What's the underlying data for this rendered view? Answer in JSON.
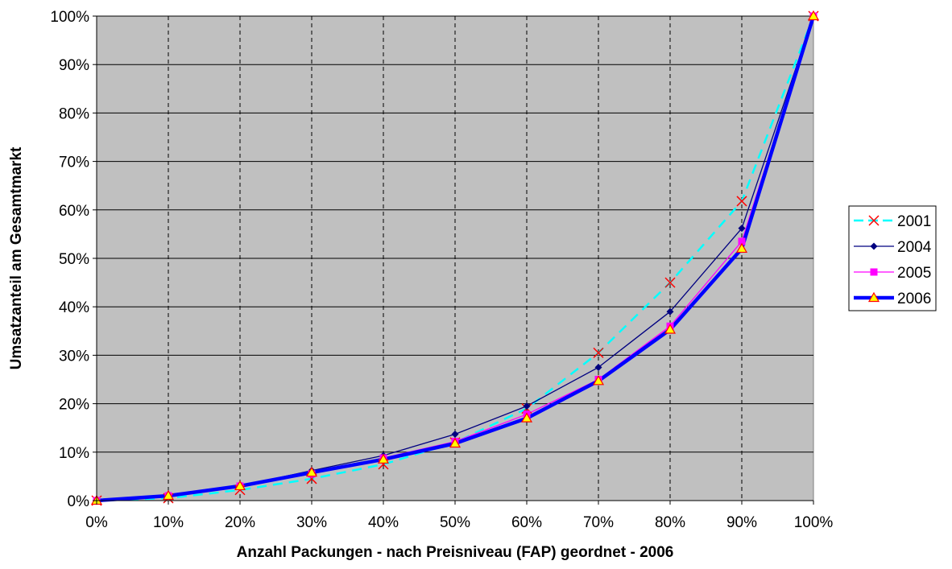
{
  "chart_data": {
    "type": "line",
    "title": "",
    "xlabel": "Anzahl Packungen - nach Preisniveau (FAP) geordnet - 2006",
    "ylabel": "Umsatzanteil am Gesamtmarkt",
    "x": [
      0,
      10,
      20,
      30,
      40,
      50,
      60,
      70,
      80,
      90,
      100
    ],
    "x_tick_labels": [
      "0%",
      "10%",
      "20%",
      "30%",
      "40%",
      "50%",
      "60%",
      "70%",
      "80%",
      "90%",
      "100%"
    ],
    "y_tick_labels": [
      "0%",
      "10%",
      "20%",
      "30%",
      "40%",
      "50%",
      "60%",
      "70%",
      "80%",
      "90%",
      "100%"
    ],
    "xlim": [
      0,
      100
    ],
    "ylim": [
      0,
      100
    ],
    "grid": {
      "x": "dashed-vertical",
      "y": "solid-horizontal"
    },
    "plot_background": "#c0c0c0",
    "legend_position": "right",
    "series": [
      {
        "name": "2001",
        "values": [
          0,
          0.5,
          2.2,
          4.5,
          7.5,
          12,
          19,
          30.5,
          45,
          61.8,
          100
        ],
        "line_color": "#00ffff",
        "marker_color": "#ff0000",
        "marker": "x",
        "line_style": "dashed",
        "line_width": "medium"
      },
      {
        "name": "2004",
        "values": [
          0,
          1,
          3,
          6.2,
          9.3,
          13.7,
          19.5,
          27.5,
          39,
          56.2,
          100
        ],
        "line_color": "#000080",
        "marker_color": "#000080",
        "marker": "diamond",
        "line_style": "solid",
        "line_width": "thin"
      },
      {
        "name": "2005",
        "values": [
          0,
          1,
          3,
          5.5,
          8.8,
          12.2,
          17.8,
          25,
          36,
          53.5,
          100
        ],
        "line_color": "#ff00ff",
        "marker_color": "#ff00ff",
        "marker": "square",
        "line_style": "solid",
        "line_width": "thin"
      },
      {
        "name": "2006",
        "values": [
          0,
          1,
          3,
          5.8,
          8.5,
          11.8,
          17,
          24.7,
          35.3,
          52,
          100
        ],
        "line_color": "#0000ff",
        "marker_color": "#ffff00",
        "marker_edge": "#ff0000",
        "marker": "triangle",
        "line_style": "solid",
        "line_width": "thick"
      }
    ]
  }
}
